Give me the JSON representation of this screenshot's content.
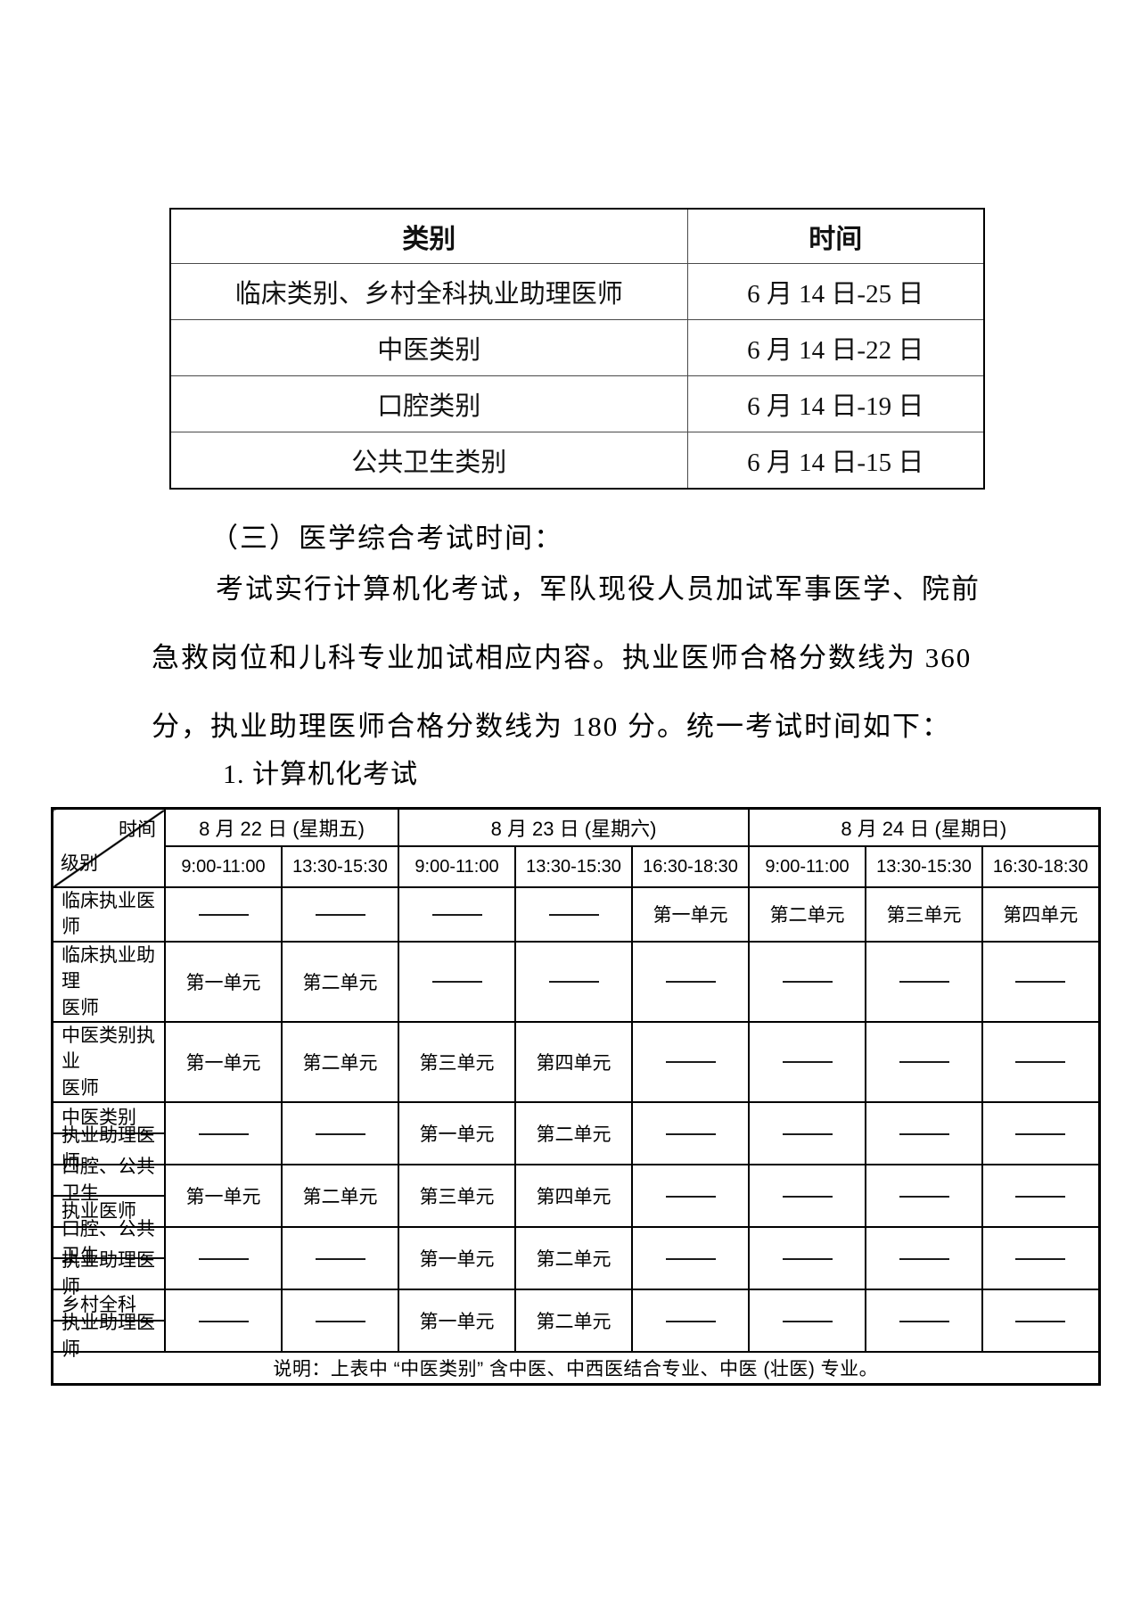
{
  "document": {
    "section_heading": "（三）医学综合考试时间：",
    "paragraph_lines": [
      "考试实行计算机化考试，军队现役人员加试军事医学、院前",
      "急救岗位和儿科专业加试相应内容。执业医师合格分数线为 360",
      "分，执业助理医师合格分数线为 180 分。统一考试时间如下："
    ],
    "list_heading": "1. 计算机化考试"
  },
  "category_table": {
    "headers": [
      "类别",
      "时间"
    ],
    "rows": [
      {
        "category": "临床类别、乡村全科执业助理医师",
        "time": "6 月 14 日-25 日"
      },
      {
        "category": "中医类别",
        "time": "6 月 14 日-22 日"
      },
      {
        "category": "口腔类别",
        "time": "6 月 14 日-19 日"
      },
      {
        "category": "公共卫生类别",
        "time": "6 月 14 日-15 日"
      }
    ]
  },
  "schedule_table": {
    "corner": {
      "top_right": "时间",
      "bottom_left": "级别"
    },
    "days": [
      {
        "label": "8 月 22 日 (星期五)",
        "times": [
          "9:00-11:00",
          "13:30-15:30"
        ]
      },
      {
        "label": "8 月 23 日 (星期六)",
        "times": [
          "9:00-11:00",
          "13:30-15:30",
          "16:30-18:30"
        ]
      },
      {
        "label": "8 月 24 日 (星期日)",
        "times": [
          "9:00-11:00",
          "13:30-15:30",
          "16:30-18:30"
        ]
      }
    ],
    "rows": [
      {
        "label_lines": [
          "临床执业医师"
        ],
        "split": false,
        "cells": [
          "dash",
          "dash",
          "dash",
          "dash",
          "第一单元",
          "第二单元",
          "第三单元",
          "第四单元"
        ]
      },
      {
        "label_lines": [
          "临床执业助理",
          "医师"
        ],
        "split": false,
        "cells": [
          "第一单元",
          "第二单元",
          "dash",
          "dash",
          "dash",
          "dash",
          "dash",
          "dash"
        ]
      },
      {
        "label_lines": [
          "中医类别执业",
          "医师"
        ],
        "split": false,
        "cells": [
          "第一单元",
          "第二单元",
          "第三单元",
          "第四单元",
          "dash",
          "dash",
          "dash",
          "dash"
        ]
      },
      {
        "label_lines": [
          "中医类别",
          "执业助理医师"
        ],
        "split": true,
        "cells": [
          "dash",
          "dash",
          "第一单元",
          "第二单元",
          "dash",
          "dash",
          "dash",
          "dash"
        ]
      },
      {
        "label_lines": [
          "口腔、公共卫生",
          "执业医师"
        ],
        "split": true,
        "cells": [
          "第一单元",
          "第二单元",
          "第三单元",
          "第四单元",
          "dash",
          "dash",
          "dash",
          "dash"
        ]
      },
      {
        "label_lines": [
          "口腔、公共卫生",
          "执业助理医师"
        ],
        "split": true,
        "cells": [
          "dash",
          "dash",
          "第一单元",
          "第二单元",
          "dash",
          "dash",
          "dash",
          "dash"
        ]
      },
      {
        "label_lines": [
          "乡村全科",
          "执业助理医师"
        ],
        "split": true,
        "cells": [
          "dash",
          "dash",
          "第一单元",
          "第二单元",
          "dash",
          "dash",
          "dash",
          "dash"
        ]
      }
    ],
    "note": "说明：上表中 “中医类别” 含中医、中西医结合专业、中医 (壮医) 专业。"
  }
}
